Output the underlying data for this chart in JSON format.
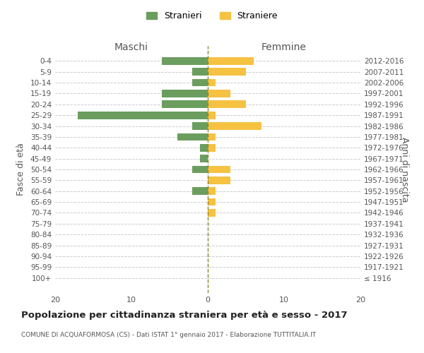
{
  "age_groups": [
    "100+",
    "95-99",
    "90-94",
    "85-89",
    "80-84",
    "75-79",
    "70-74",
    "65-69",
    "60-64",
    "55-59",
    "50-54",
    "45-49",
    "40-44",
    "35-39",
    "30-34",
    "25-29",
    "20-24",
    "15-19",
    "10-14",
    "5-9",
    "0-4"
  ],
  "birth_years": [
    "≤ 1916",
    "1917-1921",
    "1922-1926",
    "1927-1931",
    "1932-1936",
    "1937-1941",
    "1942-1946",
    "1947-1951",
    "1952-1956",
    "1957-1961",
    "1962-1966",
    "1967-1971",
    "1972-1976",
    "1977-1981",
    "1982-1986",
    "1987-1991",
    "1992-1996",
    "1997-2001",
    "2002-2006",
    "2007-2011",
    "2012-2016"
  ],
  "stranieri_maschi": [
    0,
    0,
    0,
    0,
    0,
    0,
    0,
    0,
    2,
    0,
    2,
    1,
    1,
    4,
    2,
    17,
    6,
    6,
    2,
    2,
    6
  ],
  "straniere_femmine": [
    0,
    0,
    0,
    0,
    0,
    0,
    1,
    1,
    1,
    3,
    3,
    0,
    1,
    1,
    7,
    1,
    5,
    3,
    1,
    5,
    6
  ],
  "color_maschi": "#6b9e5e",
  "color_femmine": "#f5c242",
  "title": "Popolazione per cittadinanza straniera per età e sesso - 2017",
  "subtitle": "COMUNE DI ACQUAFORMOSA (CS) - Dati ISTAT 1° gennaio 2017 - Elaborazione TUTTITALIA.IT",
  "ylabel_left": "Fasce di età",
  "ylabel_right": "Anni di nascita",
  "xlabel_left": "Maschi",
  "xlabel_right": "Femmine",
  "legend_stranieri": "Stranieri",
  "legend_straniere": "Straniere",
  "xlim": 20,
  "background_color": "#ffffff"
}
